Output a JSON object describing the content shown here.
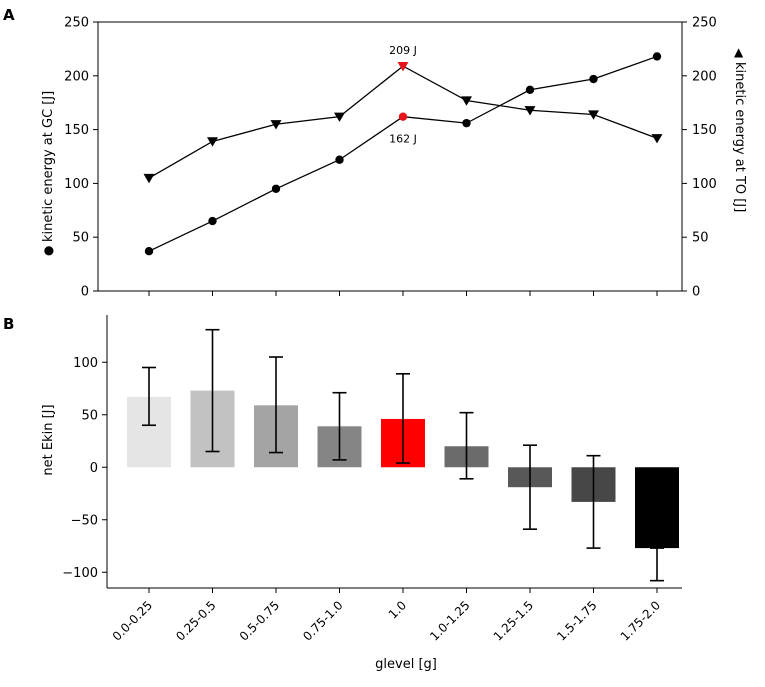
{
  "chart_data": [
    {
      "panel": "A",
      "type": "line",
      "x_categories": [
        "0.0-0.25",
        "0.25-0.5",
        "0.5-0.75",
        "0.75-1.0",
        "1.0",
        "1.0-1.25",
        "1.25-1.5",
        "1.5-1.75",
        "1.75-2.0"
      ],
      "series": [
        {
          "name": "kinetic energy at GC [J]",
          "marker": "circle",
          "axis": "left",
          "values": [
            37,
            65,
            95,
            122,
            162,
            156,
            187,
            197,
            218
          ],
          "highlight_index": 4
        },
        {
          "name": "kinetic energy at TO [J]",
          "marker": "triangle-down",
          "axis": "right",
          "values": [
            105,
            139,
            155,
            162,
            209,
            177,
            168,
            164,
            142
          ],
          "highlight_index": 4
        }
      ],
      "ylabel_left": "kinetic energy at GC [J]",
      "ylabel_right": "kinetic energy at TO [J]",
      "legend_left": "●",
      "legend_right": "▲",
      "ylim": [
        0,
        250
      ],
      "yticks": [
        0,
        50,
        100,
        150,
        200,
        250
      ],
      "annotations": [
        {
          "text": "209 J",
          "x_index": 4,
          "value": 209,
          "position": "above"
        },
        {
          "text": "162 J",
          "x_index": 4,
          "value": 162,
          "position": "below"
        }
      ],
      "highlight_color": "#e8141b"
    },
    {
      "panel": "B",
      "type": "bar",
      "categories": [
        "0.0-0.25",
        "0.25-0.5",
        "0.5-0.75",
        "0.75-1.0",
        "1.0",
        "1.0-1.25",
        "1.25-1.5",
        "1.5-1.75",
        "1.75-2.0"
      ],
      "values": [
        67,
        73,
        59,
        39,
        46,
        20,
        -19,
        -33,
        -77
      ],
      "error_low": [
        40,
        15,
        14,
        7,
        4,
        -11,
        -59,
        -77,
        -108
      ],
      "error_high": [
        95,
        131,
        105,
        71,
        89,
        52,
        21,
        11,
        -77
      ],
      "colors": [
        "#e5e5e5",
        "#c2c2c2",
        "#a4a4a4",
        "#858585",
        "#ff0000",
        "#6b6b6b",
        "#585858",
        "#474747",
        "#000000"
      ],
      "ylabel": "net Ekin [J]",
      "xlabel": "glevel [g]",
      "ylim": [
        -115,
        145
      ],
      "yticks": [
        -100,
        -50,
        0,
        50,
        100
      ]
    }
  ],
  "panel_labels": {
    "a": "A",
    "b": "B"
  }
}
